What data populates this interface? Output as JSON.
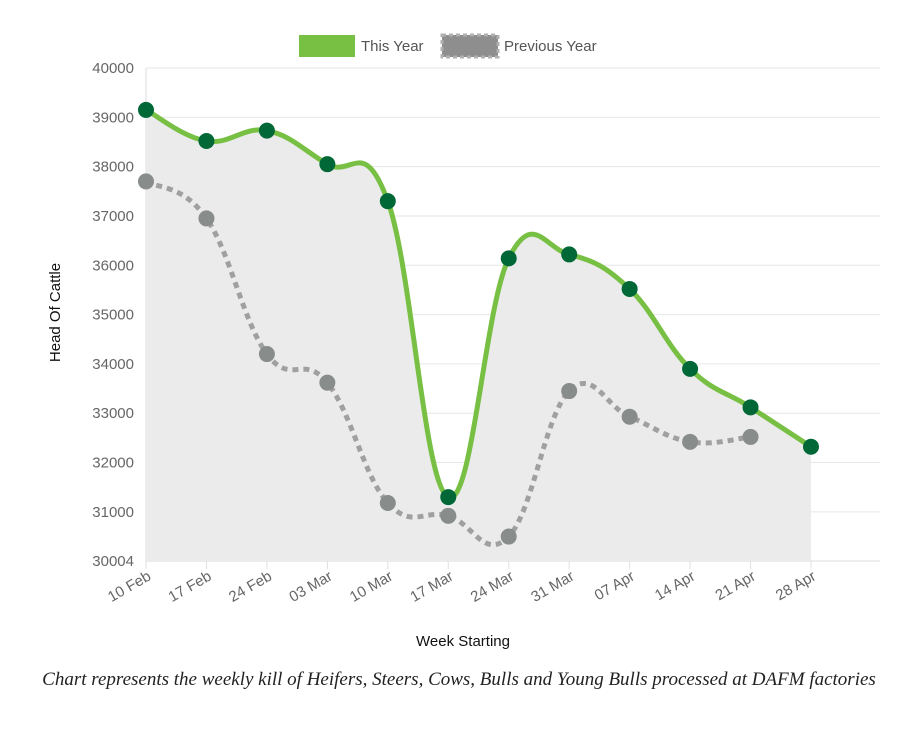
{
  "chart_data": {
    "type": "line",
    "x": [
      "10 Feb",
      "17 Feb",
      "24 Feb",
      "03 Mar",
      "10 Mar",
      "17 Mar",
      "24 Mar",
      "31 Mar",
      "07 Apr",
      "14 Apr",
      "21 Apr",
      "28 Apr"
    ],
    "series": [
      {
        "name": "This Year",
        "values": [
          39150,
          38520,
          38730,
          38050,
          37300,
          31300,
          36140,
          36220,
          35520,
          33900,
          33120,
          32320
        ],
        "color": "#77c043",
        "point_color": "#006837",
        "fill": true
      },
      {
        "name": "Previous Year",
        "values": [
          37700,
          36950,
          34200,
          33620,
          31180,
          30920,
          30500,
          33450,
          32930,
          32420,
          32520,
          null
        ],
        "color": "#a0a0a0",
        "point_color": "#888c8a",
        "dashed": true
      }
    ],
    "xlabel": "Week Starting",
    "ylabel": "Head Of Cattle",
    "y_ticks": [
      "40000",
      "39000",
      "38000",
      "37000",
      "36000",
      "35000",
      "34000",
      "33000",
      "32000",
      "31000",
      "30004"
    ],
    "ylim": [
      30004,
      40000
    ],
    "legend": "top-center",
    "grid": true
  },
  "caption": "Chart represents the weekly kill of Heifers, Steers, Cows, Bulls and Young Bulls processed at DAFM factories"
}
